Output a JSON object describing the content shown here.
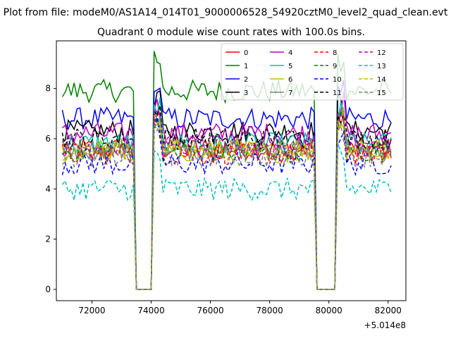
{
  "figure": {
    "suptitle": "Plot from file: modeM0/AS1A14_014T01_9000006528_54920cztM0_level2_quad_clean.evt",
    "title": "Quadrant 0 module wise count rates with 100.0s bins.",
    "x_offset_label": "+5.014e8"
  },
  "chart_data": {
    "type": "line",
    "title": "Quadrant 0 module wise count rates with 100.0s bins.",
    "xlabel": "",
    "ylabel": "",
    "x_offset": 501400000,
    "xlim": [
      70800,
      82600
    ],
    "ylim": [
      -0.45,
      9.9
    ],
    "xticks": [
      72000,
      74000,
      76000,
      78000,
      80000,
      82000
    ],
    "xtick_labels": [
      "72000",
      "74000",
      "76000",
      "78000",
      "80000",
      "82000"
    ],
    "yticks": [
      0,
      2,
      4,
      6,
      8
    ],
    "ytick_labels": [
      "0",
      "2",
      "4",
      "6",
      "8"
    ],
    "grid": false,
    "legend_position": "top-right",
    "legend_columns": 4,
    "x_range": [
      71000,
      82100
    ],
    "bin": 100,
    "gaps": [
      [
        73400,
        74100
      ],
      [
        79500,
        80300
      ]
    ],
    "series": [
      {
        "name": "0",
        "color": "#ff0000",
        "dash": "solid",
        "level": 5.6
      },
      {
        "name": "1",
        "color": "#008000",
        "dash": "solid",
        "level": 7.9
      },
      {
        "name": "2",
        "color": "#0000ff",
        "dash": "solid",
        "level": 6.8
      },
      {
        "name": "3",
        "color": "#000000",
        "dash": "solid",
        "level": 6.3
      },
      {
        "name": "4",
        "color": "#bf00bf",
        "dash": "solid",
        "level": 6.2
      },
      {
        "name": "5",
        "color": "#00bfbf",
        "dash": "solid",
        "level": 5.8
      },
      {
        "name": "6",
        "color": "#bfbf00",
        "dash": "solid",
        "level": 5.5
      },
      {
        "name": "7",
        "color": "#808080",
        "dash": "solid",
        "level": 5.6
      },
      {
        "name": "8",
        "color": "#ff0000",
        "dash": "dashed",
        "level": 5.4
      },
      {
        "name": "9",
        "color": "#008000",
        "dash": "dashed",
        "level": 5.5
      },
      {
        "name": "10",
        "color": "#0000ff",
        "dash": "dashed",
        "level": 5.0
      },
      {
        "name": "11",
        "color": "#000000",
        "dash": "dashed",
        "level": 6.0
      },
      {
        "name": "12",
        "color": "#bf00bf",
        "dash": "dashed",
        "level": 5.7
      },
      {
        "name": "13",
        "color": "#00bfbf",
        "dash": "dashed",
        "level": 4.0
      },
      {
        "name": "14",
        "color": "#bfbf00",
        "dash": "dashed",
        "level": 5.6
      },
      {
        "name": "15",
        "color": "#808080",
        "dash": "dashed",
        "level": 5.3
      }
    ]
  }
}
